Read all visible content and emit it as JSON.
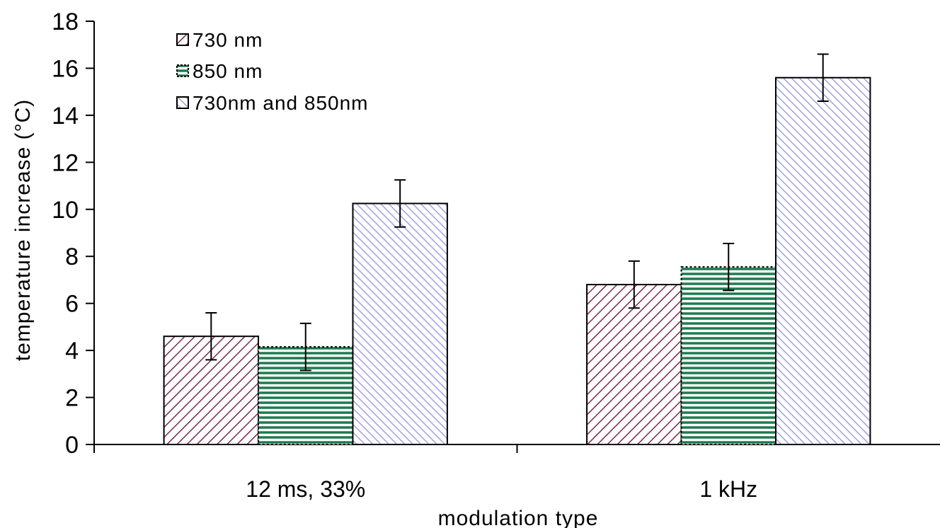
{
  "chart_data": {
    "type": "bar",
    "title": "",
    "xlabel": "modulation type",
    "ylabel": "temperature increase (°C)",
    "ylim": [
      0,
      18
    ],
    "yticks": [
      0,
      2,
      4,
      6,
      8,
      10,
      12,
      14,
      16,
      18
    ],
    "grid": false,
    "legend_position": "top-left",
    "categories": [
      "12 ms, 33%",
      "1 kHz"
    ],
    "series": [
      {
        "name": "730 nm",
        "values": [
          4.6,
          6.8
        ],
        "errors": [
          1.0,
          1.0
        ],
        "color": "#7a2a4e",
        "pattern": "diagonal-down"
      },
      {
        "name": "850 nm",
        "values": [
          4.15,
          7.55
        ],
        "errors": [
          1.0,
          1.0
        ],
        "color": "#1f7a4f",
        "pattern": "horizontal"
      },
      {
        "name": "730nm and 850nm",
        "values": [
          10.25,
          15.6
        ],
        "errors": [
          1.0,
          1.0
        ],
        "color": "#8f8fd8",
        "pattern": "diagonal-up"
      }
    ]
  }
}
